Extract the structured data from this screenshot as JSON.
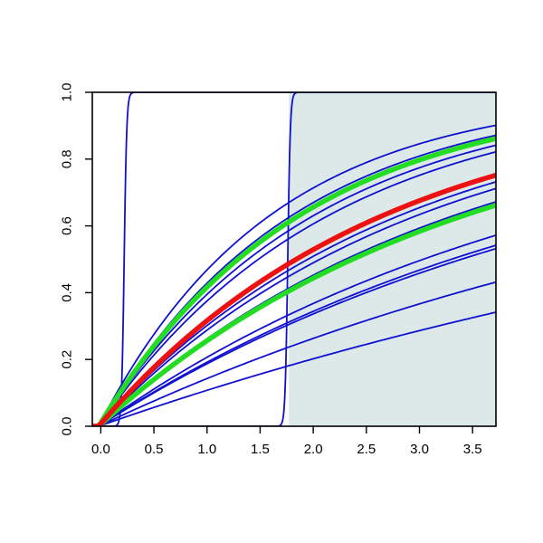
{
  "chart_data": {
    "type": "line",
    "title": "",
    "xlabel": "",
    "ylabel": "",
    "xlim": [
      -0.08,
      3.72
    ],
    "ylim": [
      0,
      1
    ],
    "grid": false,
    "x_ticks": [
      "0.0",
      "0.5",
      "1.0",
      "1.5",
      "2.0",
      "2.5",
      "3.0",
      "3.5"
    ],
    "y_ticks": [
      "0.0",
      "0.2",
      "0.4",
      "0.6",
      "0.8",
      "1.0"
    ],
    "shaded_region": {
      "x_start": 1.77,
      "x_end": 3.72,
      "color": "#dde9e9"
    },
    "colors": {
      "series": "#1010d0",
      "highlight_red": "#ee1111",
      "highlight_green": "#22dd22",
      "axes": "#000000"
    },
    "series": [
      {
        "color": "#1010d0",
        "kind": "step",
        "center": 0.22,
        "width": 0.012
      },
      {
        "color": "#1010d0",
        "kind": "step",
        "center": 1.76,
        "width": 0.012
      },
      {
        "color": "#1010d0",
        "kind": "curve",
        "end_y": 0.9
      },
      {
        "color": "#1010d0",
        "kind": "curve",
        "end_y": 0.87
      },
      {
        "color": "#1010d0",
        "kind": "curve",
        "end_y": 0.84
      },
      {
        "color": "#1010d0",
        "kind": "curve",
        "end_y": 0.82
      },
      {
        "color": "#1010d0",
        "kind": "curve",
        "end_y": 0.73
      },
      {
        "color": "#1010d0",
        "kind": "curve",
        "end_y": 0.71
      },
      {
        "color": "#1010d0",
        "kind": "curve",
        "end_y": 0.67
      },
      {
        "color": "#1010d0",
        "kind": "curve",
        "end_y": 0.57
      },
      {
        "color": "#1010d0",
        "kind": "curve",
        "end_y": 0.54
      },
      {
        "color": "#1010d0",
        "kind": "curve",
        "end_y": 0.53
      },
      {
        "color": "#1010d0",
        "kind": "curve",
        "end_y": 0.43
      },
      {
        "color": "#1010d0",
        "kind": "curve",
        "end_y": 0.34
      },
      {
        "color": "#22dd22",
        "kind": "curve",
        "end_y": 0.86,
        "thick": true
      },
      {
        "color": "#22dd22",
        "kind": "curve",
        "end_y": 0.66,
        "thick": true
      },
      {
        "color": "#ee1111",
        "kind": "curve",
        "end_y": 0.75,
        "thick": true
      }
    ]
  }
}
